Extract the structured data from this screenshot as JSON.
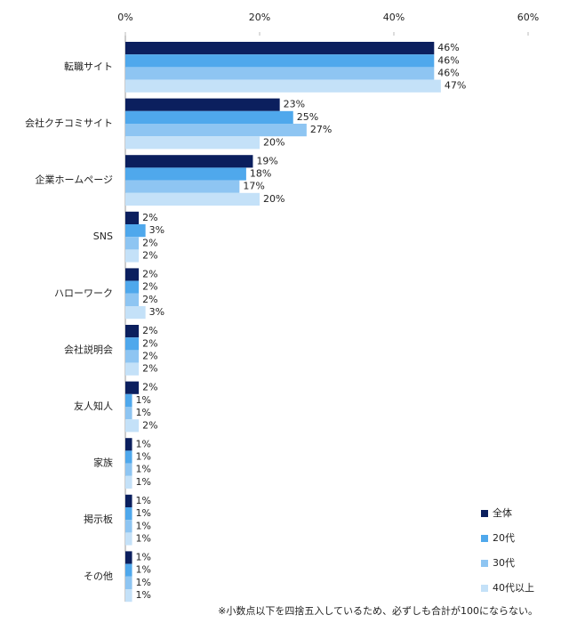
{
  "chart_data": {
    "type": "hbar",
    "categories": [
      "転職サイト",
      "会社クチコミサイト",
      "企業ホームページ",
      "SNS",
      "ハローワーク",
      "会社説明会",
      "友人知人",
      "家族",
      "掲示板",
      "その他"
    ],
    "series": [
      {
        "name": "全体",
        "color": "#0b1f5e",
        "values": [
          46,
          23,
          19,
          2,
          2,
          2,
          2,
          1,
          1,
          1
        ],
        "value_labels": [
          "46%",
          "23%",
          "19%",
          "2%",
          "2%",
          "2%",
          "2%",
          "1%",
          "1%",
          "1%"
        ]
      },
      {
        "name": "20代",
        "color": "#4fa8ec",
        "values": [
          46,
          25,
          18,
          3,
          2,
          2,
          1,
          1,
          1,
          1
        ],
        "value_labels": [
          "46%",
          "25%",
          "18%",
          "3%",
          "2%",
          "2%",
          "1%",
          "1%",
          "1%",
          "1%"
        ]
      },
      {
        "name": "30代",
        "color": "#8ec5f2",
        "values": [
          46,
          27,
          17,
          2,
          2,
          2,
          1,
          1,
          1,
          1
        ],
        "value_labels": [
          "46%",
          "27%",
          "17%",
          "2%",
          "2%",
          "2%",
          "1%",
          "1%",
          "1%",
          "1%"
        ]
      },
      {
        "name": "40代以上",
        "color": "#c4e1f8",
        "values": [
          47,
          20,
          20,
          2,
          3,
          2,
          2,
          1,
          1,
          1
        ],
        "value_labels": [
          "47%",
          "20%",
          "20%",
          "2%",
          "3%",
          "2%",
          "2%",
          "1%",
          "1%",
          "1%"
        ]
      }
    ],
    "xlim": [
      0,
      60
    ],
    "xticks": [
      {
        "value": 0,
        "label": "0%"
      },
      {
        "value": 20,
        "label": "20%"
      },
      {
        "value": 40,
        "label": "40%"
      },
      {
        "value": 60,
        "label": "60%"
      }
    ],
    "legend": "bottom-right",
    "note": "※小数点以下を四捨五入しているため、必ずしも合計が100にならない。"
  }
}
